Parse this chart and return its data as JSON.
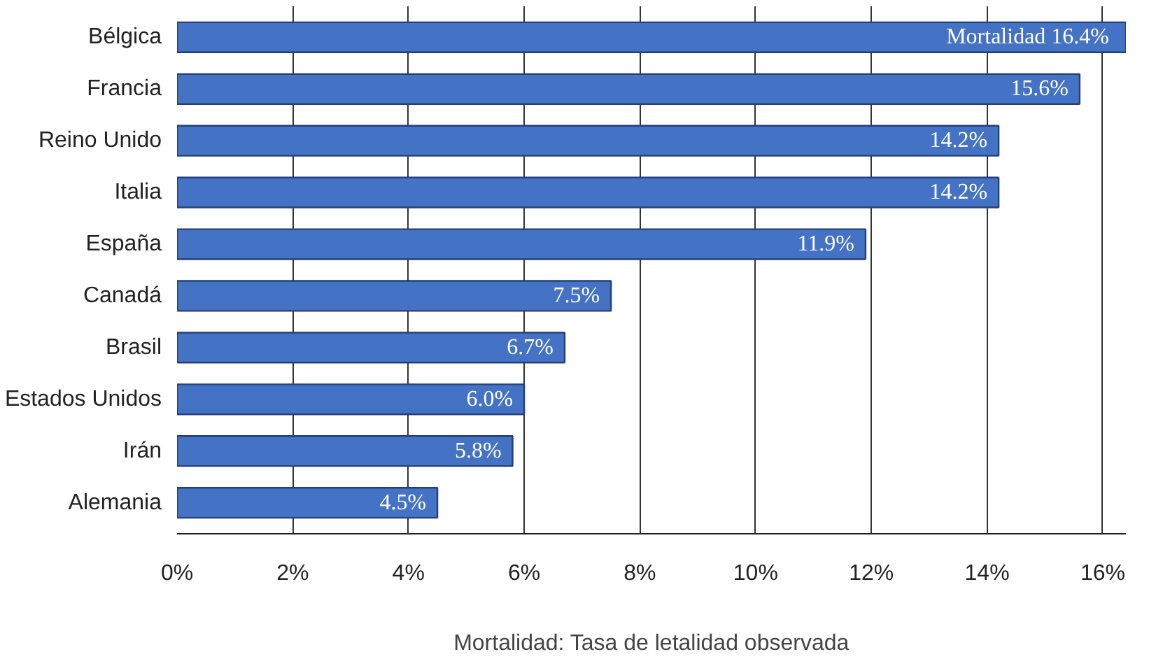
{
  "chart_data": {
    "type": "bar",
    "orientation": "horizontal",
    "xlabel": "Mortalidad: Tasa de letalidad observada",
    "categories": [
      "Bélgica",
      "Francia",
      "Reino Unido",
      "Italia",
      "España",
      "Canadá",
      "Brasil",
      "Estados Unidos",
      "Irán",
      "Alemania"
    ],
    "values": [
      16.4,
      15.6,
      14.2,
      14.2,
      11.9,
      7.5,
      6.7,
      6.0,
      5.8,
      4.5
    ],
    "value_labels": [
      "Mortalidad  16.4%",
      "15.6%",
      "14.2%",
      "14.2%",
      "11.9%",
      "7.5%",
      "6.7%",
      "6.0%",
      "5.8%",
      "4.5%"
    ],
    "color": "#4472c4",
    "xlim": [
      0,
      16.4
    ],
    "xticks": [
      {
        "value": 0,
        "label": "0%"
      },
      {
        "value": 2,
        "label": "2%"
      },
      {
        "value": 4,
        "label": "4%"
      },
      {
        "value": 6,
        "label": "6%"
      },
      {
        "value": 8,
        "label": "8%"
      },
      {
        "value": 10,
        "label": "10%"
      },
      {
        "value": 12,
        "label": "12%"
      },
      {
        "value": 14,
        "label": "14%"
      },
      {
        "value": 16,
        "label": "16%"
      }
    ],
    "grid": "x"
  }
}
